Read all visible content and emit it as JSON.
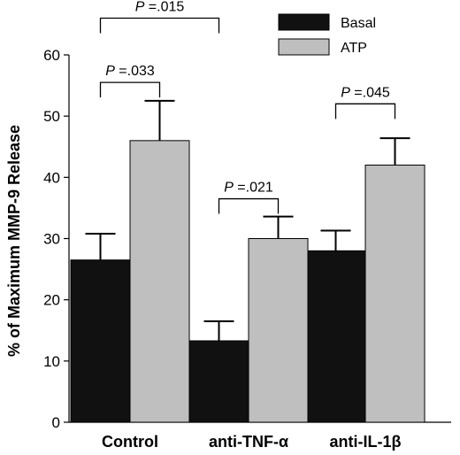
{
  "chart_data": {
    "type": "bar",
    "title": "",
    "xlabel": "",
    "ylabel": "% of Maximum MMP-9 Release",
    "ylim": [
      0,
      60
    ],
    "yticks": [
      "0",
      "10",
      "20",
      "30",
      "40",
      "50",
      "60"
    ],
    "categories": [
      "Control",
      "anti-TNF-α",
      "anti-IL-1β"
    ],
    "series": [
      {
        "name": "Basal",
        "color": "#111111",
        "values": [
          26.5,
          13.3,
          28.0
        ],
        "errors": [
          4.3,
          3.2,
          3.3
        ]
      },
      {
        "name": "ATP",
        "color": "#bfbfbf",
        "values": [
          46.0,
          30.0,
          42.0
        ],
        "errors": [
          6.5,
          3.6,
          4.4
        ]
      }
    ],
    "grid": false,
    "legend": {
      "position": "top-right",
      "entries": [
        "Basal",
        "ATP"
      ]
    },
    "annotations": [
      {
        "label": "P",
        "value": " =.033",
        "from": "Control:Basal",
        "to": "Control:ATP",
        "level": 55.5
      },
      {
        "label": "P",
        "value": " =.015",
        "from": "Control:Basal",
        "to": "anti-TNF-α:Basal",
        "level": 66
      },
      {
        "label": "P",
        "value": " =.021",
        "from": "anti-TNF-α:Basal",
        "to": "anti-TNF-α:ATP",
        "level": 36.5
      },
      {
        "label": "P",
        "value": " =.045",
        "from": "anti-IL-1β:Basal",
        "to": "anti-IL-1β:ATP",
        "level": 52
      }
    ]
  }
}
